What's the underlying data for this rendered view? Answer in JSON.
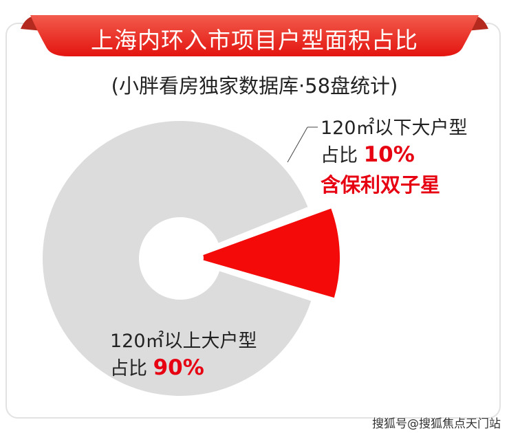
{
  "chart_data": {
    "type": "pie",
    "donut": true,
    "title": "上海内环入市项目户型面积占比",
    "subtitle": "(小胖看房独家数据库·58盘统计)",
    "slices": [
      {
        "label_line1": "120㎡以下大户型",
        "label_prefix": "占比",
        "value": 10,
        "value_text": "10%",
        "note": "含保利双子星",
        "color": "#f50a0a",
        "exploded": true
      },
      {
        "label_line1": "120㎡以上大户型",
        "label_prefix": "占比",
        "value": 90,
        "value_text": "90%",
        "color": "#dcdcdc",
        "exploded": false
      }
    ]
  },
  "watermark": "搜狐号@搜狐焦点天门站"
}
